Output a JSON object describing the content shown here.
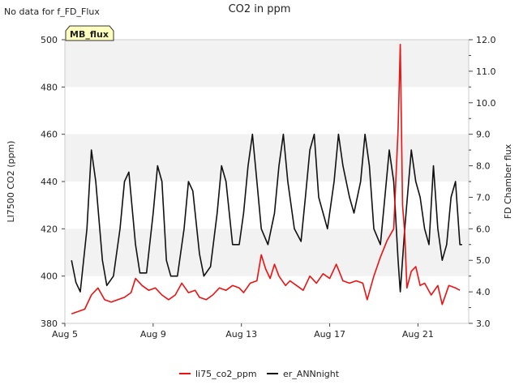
{
  "chart_data": {
    "type": "line",
    "title": "CO2 in ppm",
    "note": "No data for f_FD_Flux",
    "badge": "MB_flux",
    "ylabel_left": "LI7500 CO2 (ppm)",
    "ylabel_right": "FD Chamber flux",
    "y_left": {
      "min": 380,
      "max": 500,
      "ticks": [
        "380",
        "400",
        "420",
        "440",
        "460",
        "480",
        "500"
      ]
    },
    "y_right": {
      "min": 3.0,
      "max": 12.0,
      "ticks": [
        "3.0",
        "4.0",
        "5.0",
        "6.0",
        "7.0",
        "8.0",
        "9.0",
        "10.0",
        "11.0",
        "12.0"
      ]
    },
    "x": {
      "min": 5,
      "max": 23.3,
      "tick_values": [
        5,
        9,
        13,
        17,
        21
      ],
      "ticks": [
        "Aug 5",
        "Aug 9",
        "Aug 13",
        "Aug 17",
        "Aug 21"
      ]
    },
    "bands": [
      [
        480,
        500
      ],
      [
        440,
        460
      ],
      [
        400,
        420
      ]
    ],
    "series": [
      {
        "name": "li75_co2_ppm",
        "color": "#ee1111",
        "axis": "left",
        "points": [
          [
            5.3,
            384
          ],
          [
            5.6,
            385
          ],
          [
            5.9,
            386
          ],
          [
            6.2,
            392
          ],
          [
            6.5,
            395
          ],
          [
            6.8,
            390
          ],
          [
            7.1,
            389
          ],
          [
            7.4,
            390
          ],
          [
            7.7,
            391
          ],
          [
            8.0,
            393
          ],
          [
            8.2,
            399
          ],
          [
            8.5,
            396
          ],
          [
            8.8,
            394
          ],
          [
            9.1,
            395
          ],
          [
            9.4,
            392
          ],
          [
            9.7,
            390
          ],
          [
            10.0,
            392
          ],
          [
            10.3,
            397
          ],
          [
            10.6,
            393
          ],
          [
            10.9,
            394
          ],
          [
            11.1,
            391
          ],
          [
            11.4,
            390
          ],
          [
            11.7,
            392
          ],
          [
            12.0,
            395
          ],
          [
            12.3,
            394
          ],
          [
            12.6,
            396
          ],
          [
            12.9,
            395
          ],
          [
            13.1,
            393
          ],
          [
            13.4,
            397
          ],
          [
            13.7,
            398
          ],
          [
            13.9,
            409
          ],
          [
            14.1,
            403
          ],
          [
            14.3,
            399
          ],
          [
            14.5,
            405
          ],
          [
            14.7,
            400
          ],
          [
            15.0,
            396
          ],
          [
            15.2,
            398
          ],
          [
            15.5,
            396
          ],
          [
            15.8,
            394
          ],
          [
            16.1,
            400
          ],
          [
            16.4,
            397
          ],
          [
            16.7,
            401
          ],
          [
            17.0,
            399
          ],
          [
            17.3,
            405
          ],
          [
            17.6,
            398
          ],
          [
            17.9,
            397
          ],
          [
            18.2,
            398
          ],
          [
            18.5,
            397
          ],
          [
            18.7,
            390
          ],
          [
            19.0,
            400
          ],
          [
            19.3,
            408
          ],
          [
            19.6,
            415
          ],
          [
            19.9,
            420
          ],
          [
            20.1,
            462
          ],
          [
            20.2,
            498
          ],
          [
            20.3,
            430
          ],
          [
            20.4,
            418
          ],
          [
            20.5,
            395
          ],
          [
            20.7,
            402
          ],
          [
            20.9,
            404
          ],
          [
            21.1,
            396
          ],
          [
            21.3,
            397
          ],
          [
            21.6,
            392
          ],
          [
            21.9,
            396
          ],
          [
            22.1,
            388
          ],
          [
            22.4,
            396
          ],
          [
            22.7,
            395
          ],
          [
            22.9,
            394
          ]
        ]
      },
      {
        "name": "er_ANNnight",
        "color": "#111111",
        "axis": "right",
        "points": [
          [
            5.3,
            5.0
          ],
          [
            5.5,
            4.3
          ],
          [
            5.7,
            4.0
          ],
          [
            6.0,
            6.0
          ],
          [
            6.2,
            8.5
          ],
          [
            6.4,
            7.5
          ],
          [
            6.7,
            5.0
          ],
          [
            6.9,
            4.2
          ],
          [
            7.2,
            4.5
          ],
          [
            7.5,
            6.0
          ],
          [
            7.7,
            7.5
          ],
          [
            7.9,
            7.8
          ],
          [
            8.2,
            5.5
          ],
          [
            8.4,
            4.6
          ],
          [
            8.7,
            4.6
          ],
          [
            9.0,
            6.5
          ],
          [
            9.2,
            8.0
          ],
          [
            9.4,
            7.5
          ],
          [
            9.6,
            5.0
          ],
          [
            9.8,
            4.5
          ],
          [
            10.1,
            4.5
          ],
          [
            10.4,
            6.0
          ],
          [
            10.6,
            7.5
          ],
          [
            10.8,
            7.2
          ],
          [
            11.1,
            5.2
          ],
          [
            11.3,
            4.5
          ],
          [
            11.6,
            4.8
          ],
          [
            11.9,
            6.5
          ],
          [
            12.1,
            8.0
          ],
          [
            12.3,
            7.5
          ],
          [
            12.6,
            5.5
          ],
          [
            12.9,
            5.5
          ],
          [
            13.1,
            6.5
          ],
          [
            13.3,
            8.0
          ],
          [
            13.5,
            9.0
          ],
          [
            13.7,
            7.5
          ],
          [
            13.9,
            6.0
          ],
          [
            14.2,
            5.5
          ],
          [
            14.5,
            6.5
          ],
          [
            14.7,
            8.0
          ],
          [
            14.9,
            9.0
          ],
          [
            15.1,
            7.5
          ],
          [
            15.4,
            6.0
          ],
          [
            15.7,
            5.6
          ],
          [
            15.9,
            7.0
          ],
          [
            16.1,
            8.5
          ],
          [
            16.3,
            9.0
          ],
          [
            16.5,
            7.0
          ],
          [
            16.7,
            6.5
          ],
          [
            16.9,
            6.0
          ],
          [
            17.2,
            7.5
          ],
          [
            17.4,
            9.0
          ],
          [
            17.6,
            8.0
          ],
          [
            17.9,
            7.0
          ],
          [
            18.1,
            6.5
          ],
          [
            18.4,
            7.5
          ],
          [
            18.6,
            9.0
          ],
          [
            18.8,
            8.0
          ],
          [
            19.0,
            6.0
          ],
          [
            19.3,
            5.5
          ],
          [
            19.5,
            7.0
          ],
          [
            19.7,
            8.5
          ],
          [
            19.9,
            7.5
          ],
          [
            20.1,
            5.0
          ],
          [
            20.2,
            4.0
          ],
          [
            20.4,
            6.0
          ],
          [
            20.7,
            8.5
          ],
          [
            20.9,
            7.5
          ],
          [
            21.1,
            7.0
          ],
          [
            21.3,
            6.0
          ],
          [
            21.5,
            5.5
          ],
          [
            21.7,
            8.0
          ],
          [
            21.9,
            6.0
          ],
          [
            22.1,
            5.0
          ],
          [
            22.3,
            5.5
          ],
          [
            22.5,
            7.0
          ],
          [
            22.7,
            7.5
          ],
          [
            22.9,
            5.5
          ],
          [
            23.0,
            5.5
          ]
        ]
      }
    ]
  }
}
